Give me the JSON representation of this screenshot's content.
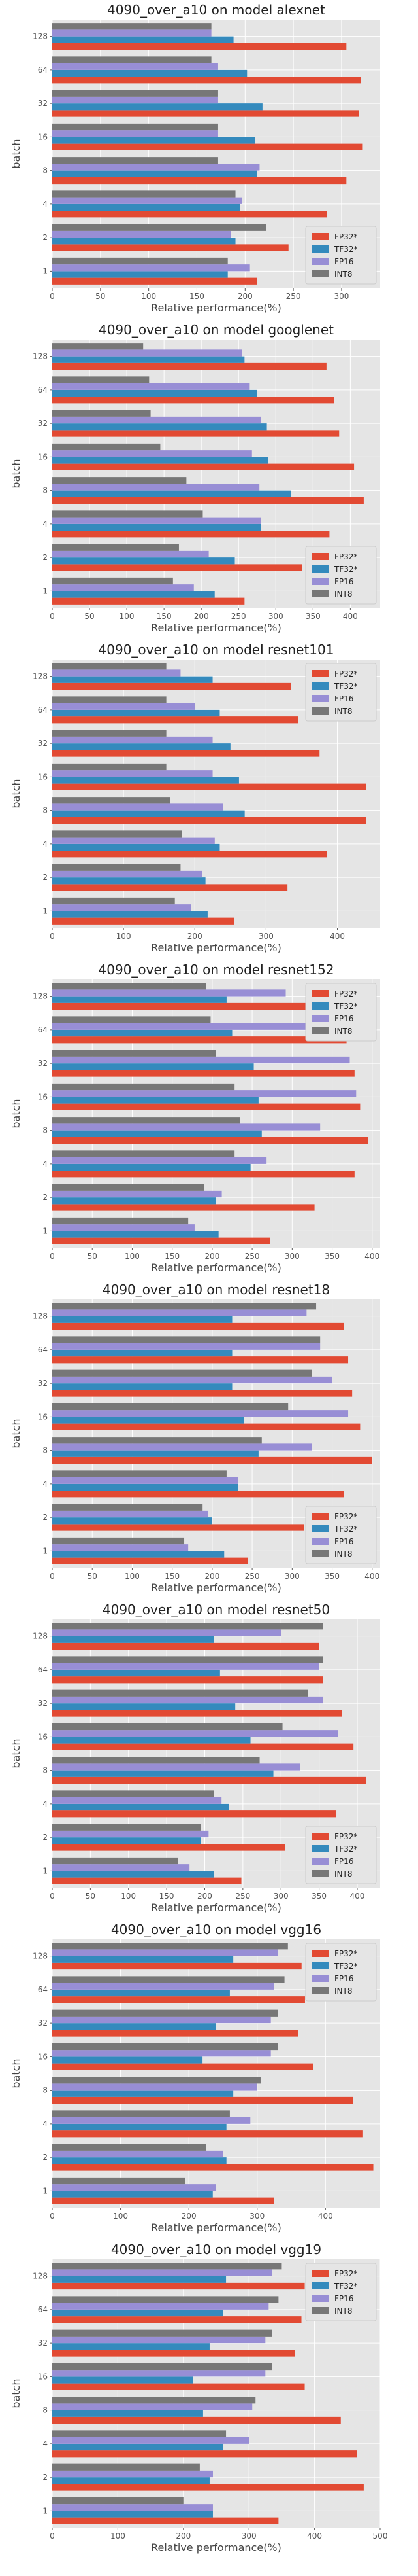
{
  "chart_data": [
    {
      "type": "bar",
      "orientation": "horizontal",
      "title": "4090_over_a10 on model alexnet",
      "xlabel": "Relative performance(%)",
      "ylabel": "batch",
      "categories": [
        "1",
        "2",
        "4",
        "8",
        "16",
        "32",
        "64",
        "128"
      ],
      "xlim": [
        0,
        340
      ],
      "xticks": [
        0,
        50,
        100,
        150,
        200,
        250,
        300
      ],
      "series": [
        {
          "name": "FP32*",
          "color": "#E24A33",
          "values": [
            212,
            245,
            285,
            305,
            322,
            318,
            320,
            305
          ]
        },
        {
          "name": "TF32*",
          "color": "#348ABD",
          "values": [
            182,
            190,
            195,
            212,
            210,
            218,
            202,
            188
          ]
        },
        {
          "name": "FP16",
          "color": "#988ED5",
          "values": [
            205,
            185,
            197,
            215,
            172,
            172,
            172,
            165
          ]
        },
        {
          "name": "INT8",
          "color": "#777777",
          "values": [
            182,
            222,
            190,
            172,
            172,
            172,
            165,
            165
          ]
        }
      ],
      "legend": "bottom-right",
      "grid": true
    },
    {
      "type": "bar",
      "orientation": "horizontal",
      "title": "4090_over_a10 on model googlenet",
      "xlabel": "Relative performance(%)",
      "ylabel": "batch",
      "categories": [
        "1",
        "2",
        "4",
        "8",
        "16",
        "32",
        "64",
        "128"
      ],
      "xlim": [
        0,
        440
      ],
      "xticks": [
        0,
        50,
        100,
        150,
        200,
        250,
        300,
        350,
        400
      ],
      "series": [
        {
          "name": "FP32*",
          "color": "#E24A33",
          "values": [
            258,
            335,
            372,
            418,
            405,
            385,
            378,
            368
          ]
        },
        {
          "name": "TF32*",
          "color": "#348ABD",
          "values": [
            218,
            245,
            280,
            320,
            290,
            288,
            275,
            258
          ]
        },
        {
          "name": "FP16",
          "color": "#988ED5",
          "values": [
            190,
            210,
            280,
            278,
            268,
            280,
            265,
            255
          ]
        },
        {
          "name": "INT8",
          "color": "#777777",
          "values": [
            162,
            170,
            202,
            180,
            145,
            132,
            130,
            122
          ]
        }
      ],
      "legend": "bottom-right",
      "grid": true
    },
    {
      "type": "bar",
      "orientation": "horizontal",
      "title": "4090_over_a10 on model resnet101",
      "xlabel": "Relative performance(%)",
      "ylabel": "batch",
      "categories": [
        "1",
        "2",
        "4",
        "8",
        "16",
        "32",
        "64",
        "128"
      ],
      "xlim": [
        0,
        460
      ],
      "xticks": [
        0,
        100,
        200,
        300,
        400
      ],
      "series": [
        {
          "name": "FP32*",
          "color": "#E24A33",
          "values": [
            255,
            330,
            385,
            440,
            440,
            375,
            345,
            335
          ]
        },
        {
          "name": "TF32*",
          "color": "#348ABD",
          "values": [
            218,
            215,
            235,
            270,
            262,
            250,
            235,
            225
          ]
        },
        {
          "name": "FP16",
          "color": "#988ED5",
          "values": [
            195,
            210,
            228,
            240,
            225,
            225,
            200,
            180
          ]
        },
        {
          "name": "INT8",
          "color": "#777777",
          "values": [
            172,
            180,
            182,
            165,
            160,
            160,
            160,
            160
          ]
        }
      ],
      "legend": "top-right",
      "grid": true
    },
    {
      "type": "bar",
      "orientation": "horizontal",
      "title": "4090_over_a10 on model resnet152",
      "xlabel": "Relative performance(%)",
      "ylabel": "batch",
      "categories": [
        "1",
        "2",
        "4",
        "8",
        "16",
        "32",
        "64",
        "128"
      ],
      "xlim": [
        0,
        410
      ],
      "xticks": [
        0,
        50,
        100,
        150,
        200,
        250,
        300,
        350,
        400
      ],
      "series": [
        {
          "name": "FP32*",
          "color": "#E24A33",
          "values": [
            272,
            328,
            378,
            395,
            385,
            378,
            368,
            362
          ]
        },
        {
          "name": "TF32*",
          "color": "#348ABD",
          "values": [
            208,
            205,
            248,
            262,
            258,
            252,
            225,
            218
          ]
        },
        {
          "name": "FP16",
          "color": "#988ED5",
          "values": [
            178,
            212,
            268,
            335,
            380,
            372,
            318,
            292
          ]
        },
        {
          "name": "INT8",
          "color": "#777777",
          "values": [
            170,
            190,
            228,
            235,
            228,
            205,
            198,
            192
          ]
        }
      ],
      "legend": "top-right",
      "grid": true
    },
    {
      "type": "bar",
      "orientation": "horizontal",
      "title": "4090_over_a10 on model resnet18",
      "xlabel": "Relative performance(%)",
      "ylabel": "batch",
      "categories": [
        "1",
        "2",
        "4",
        "8",
        "16",
        "32",
        "64",
        "128"
      ],
      "xlim": [
        0,
        410
      ],
      "xticks": [
        0,
        50,
        100,
        150,
        200,
        250,
        300,
        350,
        400
      ],
      "series": [
        {
          "name": "FP32*",
          "color": "#E24A33",
          "values": [
            245,
            315,
            365,
            400,
            385,
            375,
            370,
            365
          ]
        },
        {
          "name": "TF32*",
          "color": "#348ABD",
          "values": [
            215,
            200,
            232,
            258,
            240,
            225,
            225,
            225
          ]
        },
        {
          "name": "FP16",
          "color": "#988ED5",
          "values": [
            170,
            195,
            232,
            325,
            370,
            350,
            335,
            318
          ]
        },
        {
          "name": "INT8",
          "color": "#777777",
          "values": [
            165,
            188,
            218,
            262,
            295,
            325,
            335,
            330
          ]
        }
      ],
      "legend": "bottom-right",
      "grid": true
    },
    {
      "type": "bar",
      "orientation": "horizontal",
      "title": "4090_over_a10 on model resnet50",
      "xlabel": "Relative performance(%)",
      "ylabel": "batch",
      "categories": [
        "1",
        "2",
        "4",
        "8",
        "16",
        "32",
        "64",
        "128"
      ],
      "xlim": [
        0,
        430
      ],
      "xticks": [
        0,
        50,
        100,
        150,
        200,
        250,
        300,
        350,
        400
      ],
      "series": [
        {
          "name": "FP32*",
          "color": "#E24A33",
          "values": [
            248,
            305,
            372,
            412,
            395,
            380,
            355,
            350
          ]
        },
        {
          "name": "TF32*",
          "color": "#348ABD",
          "values": [
            212,
            195,
            232,
            290,
            260,
            240,
            220,
            212
          ]
        },
        {
          "name": "FP16",
          "color": "#988ED5",
          "values": [
            180,
            205,
            222,
            325,
            375,
            355,
            350,
            300
          ]
        },
        {
          "name": "INT8",
          "color": "#777777",
          "values": [
            165,
            195,
            212,
            272,
            302,
            335,
            355,
            355
          ]
        }
      ],
      "legend": "bottom-right",
      "grid": true
    },
    {
      "type": "bar",
      "orientation": "horizontal",
      "title": "4090_over_a10 on model vgg16",
      "xlabel": "Relative performance(%)",
      "ylabel": "batch",
      "categories": [
        "1",
        "2",
        "4",
        "8",
        "16",
        "32",
        "64",
        "128"
      ],
      "xlim": [
        0,
        480
      ],
      "xticks": [
        0,
        100,
        200,
        300,
        400
      ],
      "series": [
        {
          "name": "FP32*",
          "color": "#E24A33",
          "values": [
            325,
            470,
            455,
            440,
            382,
            360,
            370,
            365
          ]
        },
        {
          "name": "TF32*",
          "color": "#348ABD",
          "values": [
            235,
            255,
            255,
            265,
            220,
            240,
            260,
            265
          ]
        },
        {
          "name": "FP16",
          "color": "#988ED5",
          "values": [
            240,
            250,
            290,
            300,
            320,
            320,
            325,
            330
          ]
        },
        {
          "name": "INT8",
          "color": "#777777",
          "values": [
            195,
            225,
            260,
            305,
            330,
            330,
            340,
            345
          ]
        }
      ],
      "legend": "top-right",
      "grid": true
    },
    {
      "type": "bar",
      "orientation": "horizontal",
      "title": "4090_over_a10 on model vgg19",
      "xlabel": "Relative performance(%)",
      "ylabel": "batch",
      "categories": [
        "1",
        "2",
        "4",
        "8",
        "16",
        "32",
        "64",
        "128"
      ],
      "xlim": [
        0,
        500
      ],
      "xticks": [
        0,
        100,
        200,
        300,
        400,
        500
      ],
      "series": [
        {
          "name": "FP32*",
          "color": "#E24A33",
          "values": [
            345,
            475,
            465,
            440,
            385,
            370,
            380,
            385
          ]
        },
        {
          "name": "TF32*",
          "color": "#348ABD",
          "values": [
            245,
            240,
            260,
            230,
            215,
            240,
            260,
            265
          ]
        },
        {
          "name": "FP16",
          "color": "#988ED5",
          "values": [
            245,
            245,
            300,
            305,
            325,
            325,
            330,
            335
          ]
        },
        {
          "name": "INT8",
          "color": "#777777",
          "values": [
            200,
            225,
            265,
            310,
            335,
            335,
            345,
            350
          ]
        }
      ],
      "legend": "top-right",
      "grid": true
    }
  ]
}
